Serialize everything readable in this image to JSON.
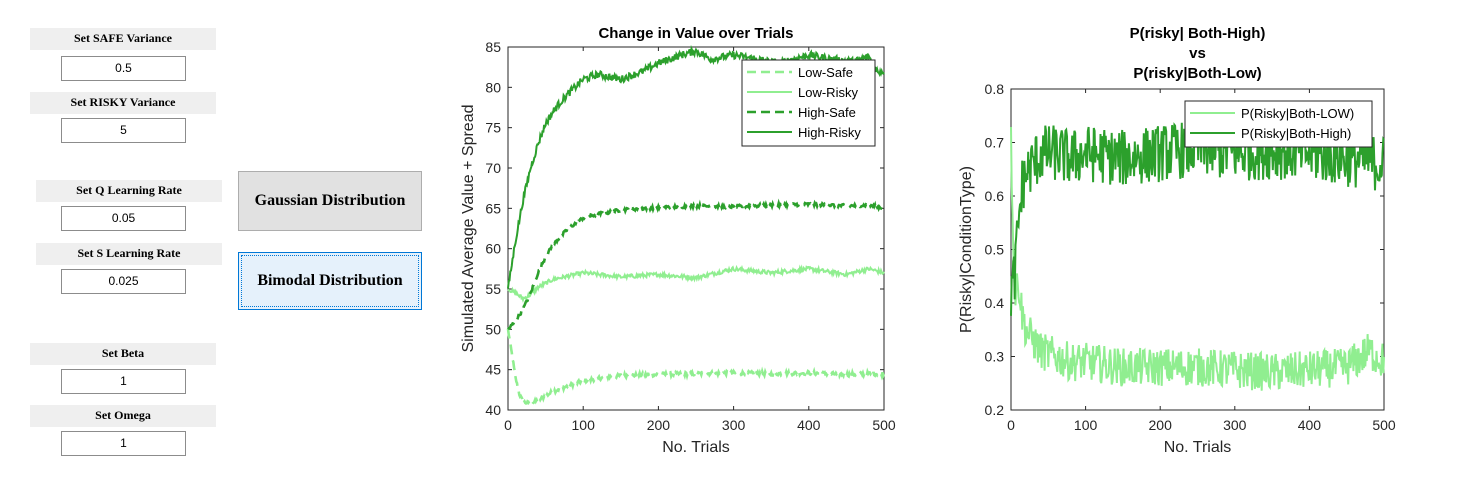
{
  "controls": {
    "safe_variance": {
      "label": "Set SAFE Variance",
      "value": "0.5"
    },
    "risky_variance": {
      "label": "Set RISKY Variance",
      "value": "5"
    },
    "q_learning_rate": {
      "label": "Set Q Learning Rate",
      "value": "0.05"
    },
    "s_learning_rate": {
      "label": "Set S Learning Rate",
      "value": "0.025"
    },
    "beta": {
      "label": "Set Beta",
      "value": "1"
    },
    "omega": {
      "label": "Set Omega",
      "value": "1"
    }
  },
  "buttons": {
    "gaussian": "Gaussian Distribution",
    "bimodal": "Bimodal Distribution"
  },
  "colors": {
    "low": "#90ee90",
    "high": "#2ca02c",
    "axis": "#262626",
    "button_face": "#e1e1e1",
    "button_selected": "#e5f1fb",
    "focus_border": "#0078d7"
  },
  "chart_data": [
    {
      "type": "line",
      "title": "Change in Value over Trials",
      "xlabel": "No. Trials",
      "ylabel": "Simulated Average Value + Spread",
      "xlim": [
        0,
        500
      ],
      "ylim": [
        40,
        85
      ],
      "xticks": [
        "0",
        "100",
        "200",
        "300",
        "400",
        "500"
      ],
      "yticks": [
        "40",
        "45",
        "50",
        "55",
        "60",
        "65",
        "70",
        "75",
        "80",
        "85"
      ],
      "grid": false,
      "legend_position": "top-right",
      "series": [
        {
          "name": "Low-Safe",
          "style": "dashed",
          "color": "#90ee90",
          "x": [
            0,
            5,
            10,
            15,
            20,
            30,
            40,
            60,
            80,
            100,
            130,
            160,
            200,
            250,
            300,
            350,
            400,
            450,
            480,
            500
          ],
          "y": [
            50,
            47,
            44,
            42,
            41,
            40.8,
            41.2,
            42.3,
            43,
            43.6,
            44.1,
            44.3,
            44.4,
            44.5,
            44.6,
            44.5,
            44.6,
            44.4,
            44.5,
            44.5
          ]
        },
        {
          "name": "Low-Risky",
          "style": "solid",
          "color": "#90ee90",
          "x": [
            0,
            10,
            20,
            30,
            40,
            60,
            80,
            100,
            150,
            200,
            250,
            300,
            350,
            400,
            450,
            480,
            500
          ],
          "y": [
            55,
            54.5,
            53.8,
            54.3,
            55.2,
            56.2,
            56.6,
            57,
            56.5,
            56.8,
            56.4,
            57.5,
            57,
            57.5,
            56.8,
            57.5,
            57
          ]
        },
        {
          "name": "High-Safe",
          "style": "dashed",
          "color": "#2ca02c",
          "x": [
            0,
            10,
            20,
            30,
            40,
            50,
            60,
            80,
            100,
            120,
            150,
            180,
            200,
            250,
            300,
            350,
            400,
            450,
            480,
            500
          ],
          "y": [
            50,
            51,
            52.5,
            54.5,
            57,
            59,
            60.5,
            62.5,
            63.8,
            64.3,
            64.8,
            65,
            65.1,
            65.3,
            65.2,
            65.4,
            65.5,
            65.3,
            65.4,
            65
          ]
        },
        {
          "name": "High-Risky",
          "style": "solid",
          "color": "#2ca02c",
          "x": [
            0,
            10,
            20,
            30,
            40,
            50,
            60,
            70,
            80,
            100,
            120,
            150,
            180,
            200,
            230,
            250,
            270,
            300,
            330,
            360,
            400,
            430,
            460,
            480,
            490,
            500
          ],
          "y": [
            55,
            61,
            66,
            70,
            73,
            75.5,
            77,
            78.2,
            79.2,
            81,
            81.6,
            81,
            82,
            83,
            84,
            84.5,
            83.5,
            84,
            83.5,
            83,
            84,
            83.5,
            83.2,
            83.8,
            82,
            82
          ]
        }
      ]
    },
    {
      "type": "line",
      "title": "P(risky| Both-High)\nvs\nP(risky|Both-Low)",
      "xlabel": "No. Trials",
      "ylabel": "P(Risky|ConditionType)",
      "xlim": [
        0,
        500
      ],
      "ylim": [
        0.2,
        0.8
      ],
      "xticks": [
        "0",
        "100",
        "200",
        "300",
        "400",
        "500"
      ],
      "yticks": [
        "0.2",
        "0.3",
        "0.4",
        "0.5",
        "0.6",
        "0.7",
        "0.8"
      ],
      "grid": false,
      "legend_position": "top-right",
      "series": [
        {
          "name": "P(Risky|Both-LOW)",
          "style": "solid",
          "color": "#90ee90",
          "x": [
            0,
            5,
            10,
            15,
            20,
            30,
            40,
            60,
            80,
            100,
            150,
            200,
            250,
            300,
            350,
            400,
            450,
            480,
            500
          ],
          "y": [
            0.7,
            0.42,
            0.44,
            0.38,
            0.35,
            0.33,
            0.31,
            0.3,
            0.29,
            0.29,
            0.28,
            0.28,
            0.28,
            0.275,
            0.27,
            0.275,
            0.28,
            0.31,
            0.29
          ]
        },
        {
          "name": "P(Risky|Both-High)",
          "style": "solid",
          "color": "#2ca02c",
          "x": [
            0,
            5,
            10,
            15,
            20,
            30,
            40,
            60,
            80,
            100,
            150,
            200,
            250,
            300,
            350,
            400,
            450,
            480,
            500
          ],
          "y": [
            0.42,
            0.45,
            0.55,
            0.62,
            0.64,
            0.66,
            0.68,
            0.68,
            0.67,
            0.68,
            0.67,
            0.68,
            0.69,
            0.68,
            0.685,
            0.68,
            0.67,
            0.665,
            0.66
          ]
        }
      ]
    }
  ]
}
